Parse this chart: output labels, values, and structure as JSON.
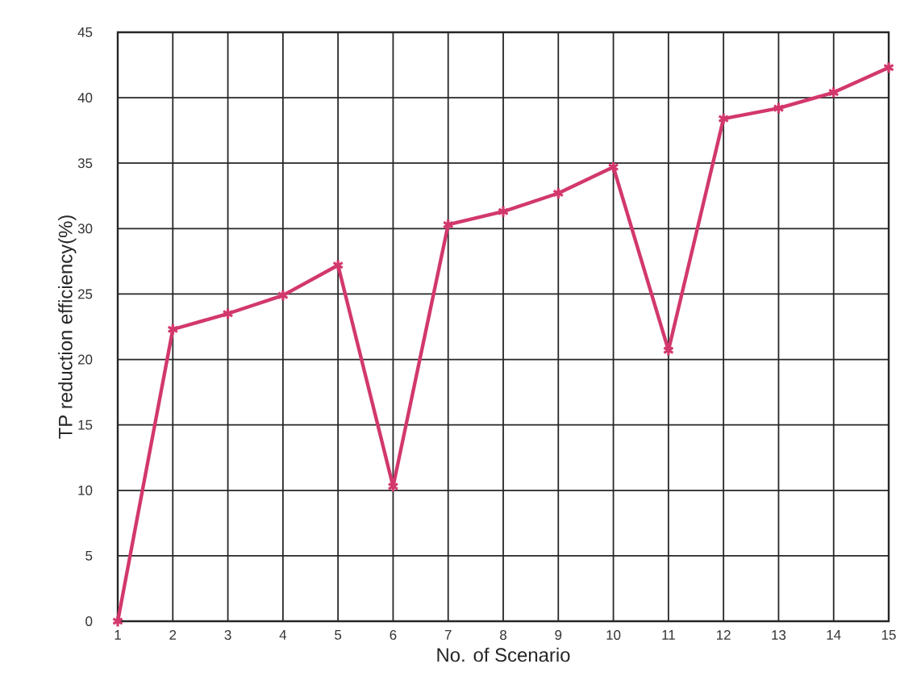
{
  "chart_data": {
    "type": "line",
    "xlabel": "No. of Scenario",
    "ylabel": "TP reduction efficiency(%)",
    "x": [
      1,
      2,
      3,
      4,
      5,
      6,
      7,
      8,
      9,
      10,
      11,
      12,
      13,
      14,
      15
    ],
    "series": [
      {
        "color": "#d2386c",
        "values": [
          0,
          22.3,
          23.5,
          24.9,
          27.2,
          10.3,
          30.3,
          31.3,
          32.7,
          34.7,
          20.7,
          38.4,
          39.2,
          40.4,
          42.3
        ]
      }
    ],
    "xlim": [
      1,
      15
    ],
    "xticks": [
      1,
      2,
      3,
      4,
      5,
      6,
      7,
      8,
      9,
      10,
      11,
      12,
      13,
      14,
      15
    ],
    "ylim": [
      0,
      45
    ],
    "yticks": [
      0,
      5,
      10,
      15,
      20,
      25,
      30,
      35,
      40,
      45
    ],
    "grid": true,
    "marker": "cross",
    "line_style": "solid"
  }
}
